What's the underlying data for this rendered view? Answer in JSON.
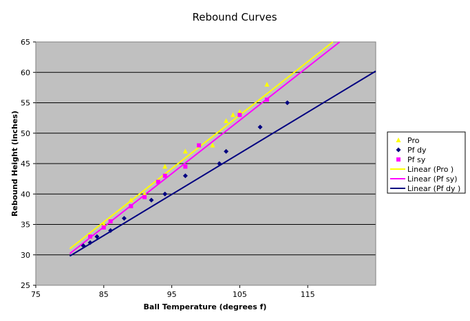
{
  "chart_data": {
    "type": "scatter",
    "title": "Rebound Curves",
    "xlabel": "Ball Temperature (degrees f)",
    "ylabel": "Rebound Height (inches)",
    "xlim": [
      75,
      125
    ],
    "ylim": [
      25,
      65
    ],
    "x_ticks": [
      "75",
      "85",
      "95",
      "105",
      "115"
    ],
    "y_ticks": [
      "25",
      "30",
      "35",
      "40",
      "45",
      "50",
      "55",
      "60",
      "65"
    ],
    "grid": true,
    "legend_position": "right",
    "series": [
      {
        "name": "Pro",
        "marker": "triangle",
        "color": "#ffff00",
        "points": [
          [
            83,
            33
          ],
          [
            85,
            35
          ],
          [
            86,
            35.5
          ],
          [
            89,
            39
          ],
          [
            91,
            40
          ],
          [
            93,
            42
          ],
          [
            94,
            44.5
          ],
          [
            97,
            47
          ],
          [
            99,
            48
          ],
          [
            101,
            48
          ],
          [
            103,
            52
          ],
          [
            104,
            53
          ],
          [
            105,
            53.5
          ],
          [
            109,
            58
          ]
        ]
      },
      {
        "name": "Pf dy",
        "marker": "diamond",
        "color": "#000080",
        "points": [
          [
            82,
            31.5
          ],
          [
            83,
            32
          ],
          [
            84,
            33
          ],
          [
            86,
            34
          ],
          [
            88,
            36
          ],
          [
            92,
            39
          ],
          [
            94,
            40
          ],
          [
            97,
            43
          ],
          [
            102,
            45
          ],
          [
            103,
            47
          ],
          [
            108,
            51
          ],
          [
            112,
            55
          ]
        ]
      },
      {
        "name": "Pf sy",
        "marker": "square",
        "color": "#ff00ff",
        "points": [
          [
            83,
            33
          ],
          [
            85,
            34.5
          ],
          [
            86,
            35.5
          ],
          [
            89,
            38
          ],
          [
            91,
            39.5
          ],
          [
            93,
            42
          ],
          [
            94,
            43
          ],
          [
            97,
            44.5
          ],
          [
            99,
            48
          ],
          [
            105,
            53
          ],
          [
            109,
            55.5
          ]
        ]
      }
    ],
    "trendlines": [
      {
        "name": "Linear (Pro )",
        "color": "#ffff00",
        "x": [
          80,
          118.7
        ],
        "y": [
          31,
          65
        ]
      },
      {
        "name": "Linear (Pf sy)",
        "color": "#ff00ff",
        "x": [
          80,
          119.7
        ],
        "y": [
          30.2,
          65
        ]
      },
      {
        "name": "Linear (Pf dy )",
        "color": "#000080",
        "x": [
          80,
          125
        ],
        "y": [
          29.8,
          60.2
        ]
      }
    ]
  }
}
